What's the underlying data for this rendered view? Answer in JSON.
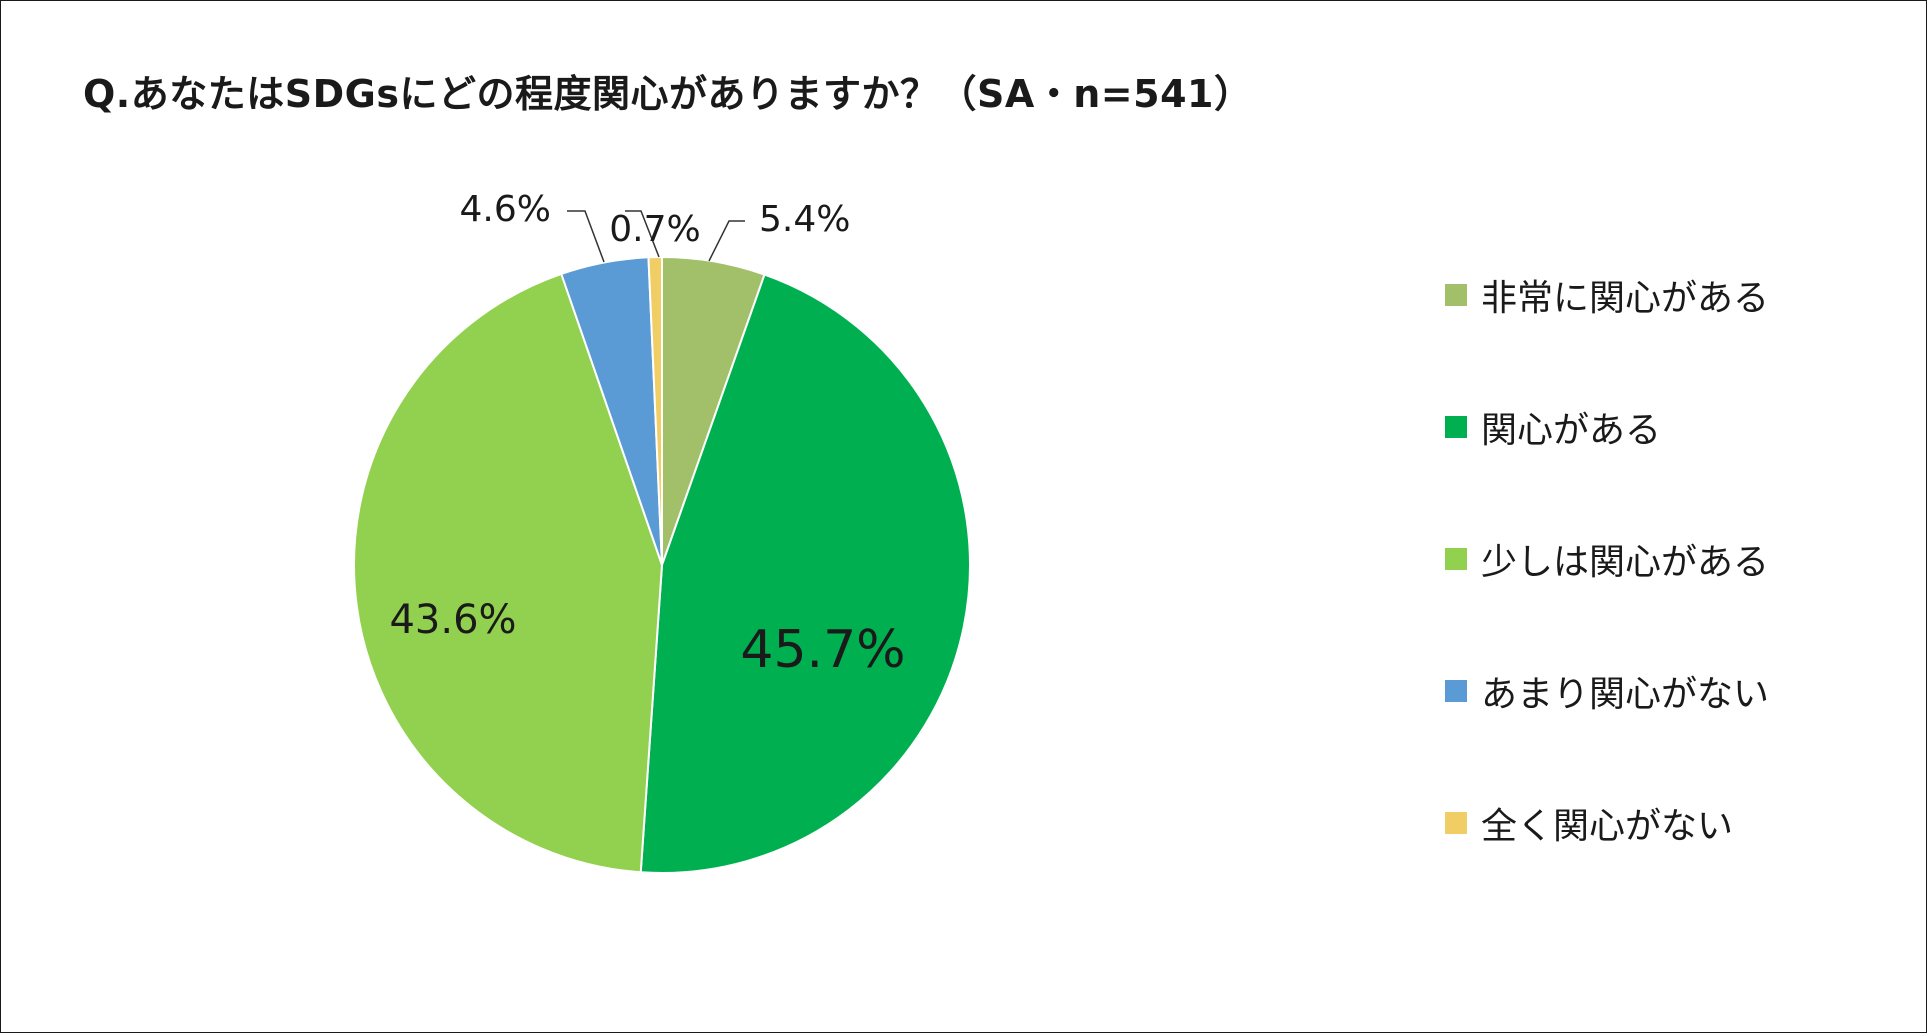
{
  "title": "Q.あなたはSDGsにどの程度関心がありますか？（SA・n=541）",
  "chart_data": {
    "type": "pie",
    "title": "Q.あなたはSDGsにどの程度関心がありますか？（SA・n=541）",
    "n": 541,
    "start_angle_deg": 0,
    "direction": "clockwise",
    "legend_position": "right",
    "slices": [
      {
        "label": "非常に関心がある",
        "value": 5.4,
        "value_label": "5.4%",
        "color": "#a2bf69"
      },
      {
        "label": "関心がある",
        "value": 45.7,
        "value_label": "45.7%",
        "color": "#00b050"
      },
      {
        "label": "少しは関心がある",
        "value": 43.6,
        "value_label": "43.6%",
        "color": "#92d050"
      },
      {
        "label": "あまり関心がない",
        "value": 4.6,
        "value_label": "4.6%",
        "color": "#5b9bd5"
      },
      {
        "label": "全く関心がない",
        "value": 0.7,
        "value_label": "0.7%",
        "color": "#f0cd65"
      }
    ]
  }
}
